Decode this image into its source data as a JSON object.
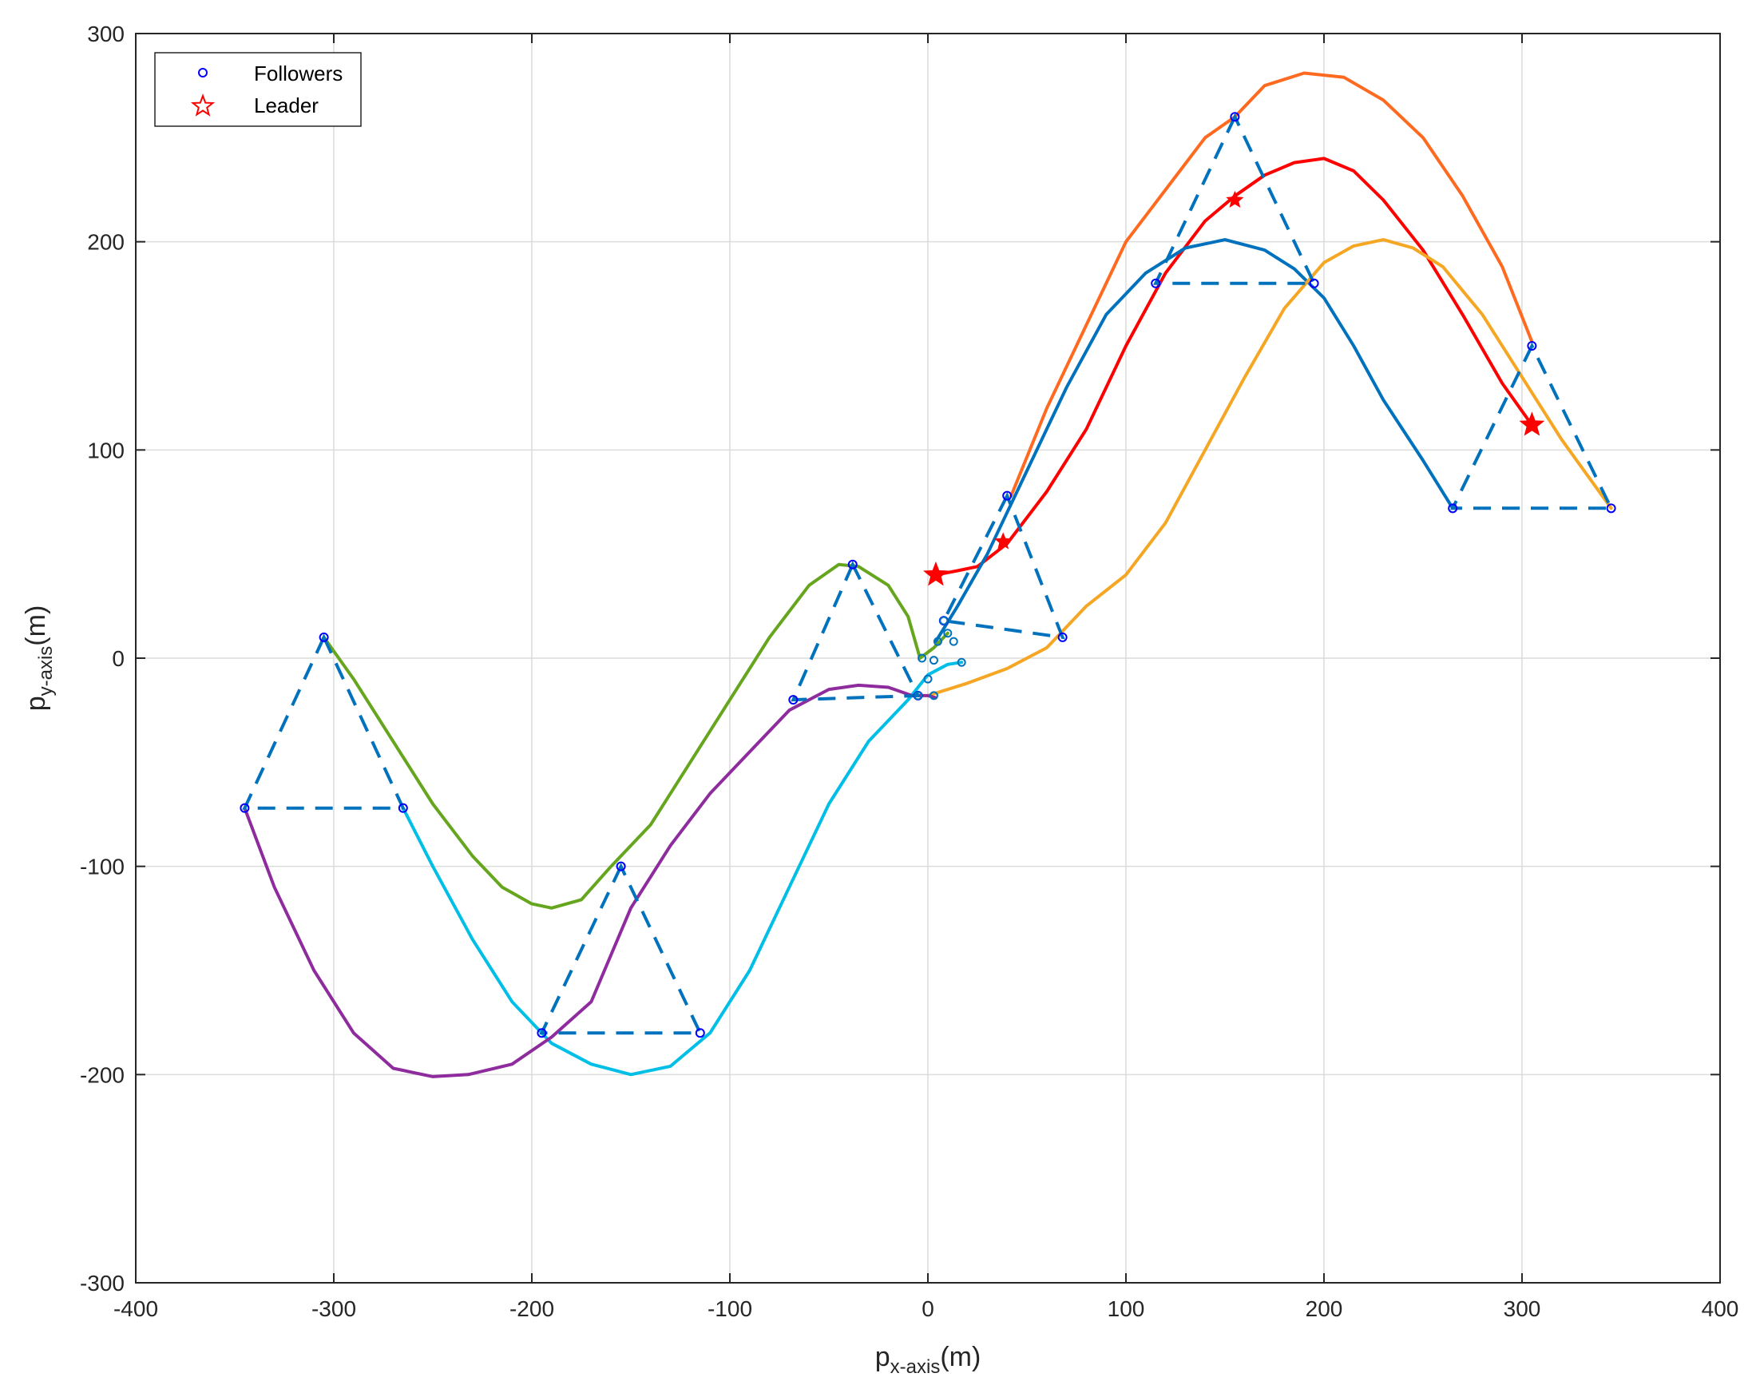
{
  "chart_data": {
    "type": "line",
    "xlabel": {
      "main": "p",
      "sub": "x-axis",
      "unit": "(m)"
    },
    "ylabel": {
      "main": "p",
      "sub": "y-axis",
      "unit": "(m)"
    },
    "xlim": [
      -400,
      400
    ],
    "ylim": [
      -300,
      300
    ],
    "xticks": [
      -400,
      -300,
      -200,
      -100,
      0,
      100,
      200,
      300,
      400
    ],
    "yticks": [
      -300,
      -200,
      -100,
      0,
      100,
      200,
      300
    ],
    "grid": true,
    "legend": {
      "placement": "top-left",
      "entries": [
        {
          "label": "Followers",
          "marker": "circle",
          "color": "#0000ff"
        },
        {
          "label": "Leader",
          "marker": "star",
          "color": "#ff0000"
        }
      ]
    },
    "trajectories": [
      {
        "color": "#ff6a20",
        "points": [
          [
            42,
            78
          ],
          [
            60,
            120
          ],
          [
            80,
            160
          ],
          [
            100,
            200
          ],
          [
            120,
            225
          ],
          [
            140,
            250
          ],
          [
            155,
            260
          ],
          [
            170,
            275
          ],
          [
            190,
            281
          ],
          [
            210,
            279
          ],
          [
            230,
            268
          ],
          [
            250,
            250
          ],
          [
            270,
            222
          ],
          [
            290,
            188
          ],
          [
            305,
            152
          ]
        ]
      },
      {
        "color": "#ff0000",
        "points": [
          [
            4,
            40
          ],
          [
            15,
            42
          ],
          [
            25,
            44
          ],
          [
            40,
            55
          ],
          [
            60,
            80
          ],
          [
            80,
            110
          ],
          [
            100,
            150
          ],
          [
            120,
            185
          ],
          [
            140,
            210
          ],
          [
            155,
            222
          ],
          [
            170,
            232
          ],
          [
            185,
            238
          ],
          [
            200,
            240
          ],
          [
            215,
            234
          ],
          [
            230,
            220
          ],
          [
            250,
            196
          ],
          [
            270,
            165
          ],
          [
            290,
            132
          ],
          [
            305,
            112
          ]
        ]
      },
      {
        "color": "#0072bd",
        "points": [
          [
            4,
            8
          ],
          [
            15,
            25
          ],
          [
            30,
            50
          ],
          [
            50,
            90
          ],
          [
            70,
            130
          ],
          [
            90,
            165
          ],
          [
            110,
            185
          ],
          [
            130,
            197
          ],
          [
            150,
            201
          ],
          [
            170,
            196
          ],
          [
            185,
            187
          ],
          [
            200,
            173
          ],
          [
            215,
            150
          ],
          [
            230,
            124
          ],
          [
            250,
            95
          ],
          [
            265,
            72
          ]
        ]
      },
      {
        "color": "#f5a623",
        "points": [
          [
            0,
            -18
          ],
          [
            20,
            -12
          ],
          [
            40,
            -5
          ],
          [
            60,
            5
          ],
          [
            80,
            25
          ],
          [
            100,
            40
          ],
          [
            120,
            65
          ],
          [
            140,
            100
          ],
          [
            160,
            135
          ],
          [
            180,
            168
          ],
          [
            200,
            190
          ],
          [
            215,
            198
          ],
          [
            230,
            201
          ],
          [
            245,
            197
          ],
          [
            260,
            188
          ],
          [
            280,
            165
          ],
          [
            300,
            135
          ],
          [
            320,
            105
          ],
          [
            345,
            72
          ]
        ]
      },
      {
        "color": "#66a61e",
        "points": [
          [
            -305,
            10
          ],
          [
            -290,
            -10
          ],
          [
            -270,
            -40
          ],
          [
            -250,
            -70
          ],
          [
            -230,
            -95
          ],
          [
            -215,
            -110
          ],
          [
            -200,
            -118
          ],
          [
            -190,
            -120
          ],
          [
            -175,
            -116
          ],
          [
            -160,
            -100
          ],
          [
            -140,
            -80
          ],
          [
            -120,
            -50
          ],
          [
            -100,
            -20
          ],
          [
            -80,
            10
          ],
          [
            -60,
            35
          ],
          [
            -45,
            45
          ],
          [
            -35,
            44
          ],
          [
            -20,
            35
          ],
          [
            -10,
            20
          ],
          [
            -4,
            0
          ],
          [
            3,
            5
          ],
          [
            10,
            12
          ]
        ]
      },
      {
        "color": "#00bfe6",
        "points": [
          [
            -265,
            -72
          ],
          [
            -250,
            -100
          ],
          [
            -230,
            -135
          ],
          [
            -210,
            -165
          ],
          [
            -190,
            -185
          ],
          [
            -170,
            -195
          ],
          [
            -150,
            -200
          ],
          [
            -130,
            -196
          ],
          [
            -110,
            -180
          ],
          [
            -90,
            -150
          ],
          [
            -70,
            -110
          ],
          [
            -50,
            -70
          ],
          [
            -30,
            -40
          ],
          [
            -10,
            -20
          ],
          [
            0,
            -8
          ],
          [
            10,
            -3
          ],
          [
            17,
            -2
          ]
        ]
      },
      {
        "color": "#8e2c9e",
        "points": [
          [
            -345,
            -72
          ],
          [
            -330,
            -110
          ],
          [
            -310,
            -150
          ],
          [
            -290,
            -180
          ],
          [
            -270,
            -197
          ],
          [
            -250,
            -201
          ],
          [
            -232,
            -200
          ],
          [
            -210,
            -195
          ],
          [
            -190,
            -182
          ],
          [
            -170,
            -165
          ],
          [
            -150,
            -120
          ],
          [
            -130,
            -90
          ],
          [
            -110,
            -65
          ],
          [
            -90,
            -45
          ],
          [
            -70,
            -25
          ],
          [
            -50,
            -15
          ],
          [
            -35,
            -13
          ],
          [
            -20,
            -14
          ],
          [
            -8,
            -18
          ],
          [
            0,
            -18
          ],
          [
            4,
            -19
          ]
        ]
      }
    ],
    "formations": [
      {
        "points": [
          [
            -305,
            10
          ],
          [
            -345,
            -72
          ],
          [
            -265,
            -72
          ]
        ]
      },
      {
        "points": [
          [
            -155,
            -100
          ],
          [
            -195,
            -180
          ],
          [
            -115,
            -180
          ]
        ]
      },
      {
        "points": [
          [
            -38,
            45
          ],
          [
            -68,
            -20
          ],
          [
            -5,
            -18
          ]
        ]
      },
      {
        "points": [
          [
            40,
            78
          ],
          [
            8,
            18
          ],
          [
            68,
            10
          ]
        ]
      },
      {
        "points": [
          [
            155,
            260
          ],
          [
            115,
            180
          ],
          [
            195,
            180
          ]
        ]
      },
      {
        "points": [
          [
            305,
            150
          ],
          [
            265,
            72
          ],
          [
            345,
            72
          ]
        ]
      }
    ],
    "center_markers": {
      "color": "#0072bd",
      "points": [
        [
          -5,
          -18
        ],
        [
          0,
          -10
        ],
        [
          3,
          -18
        ],
        [
          5,
          8
        ],
        [
          8,
          18
        ],
        [
          10,
          12
        ],
        [
          13,
          8
        ],
        [
          17,
          -2
        ],
        [
          -3,
          0
        ],
        [
          3,
          -1
        ]
      ]
    },
    "leader_points": [
      [
        4,
        40
      ],
      [
        38,
        56
      ],
      [
        155,
        220
      ],
      [
        305,
        112
      ]
    ]
  }
}
